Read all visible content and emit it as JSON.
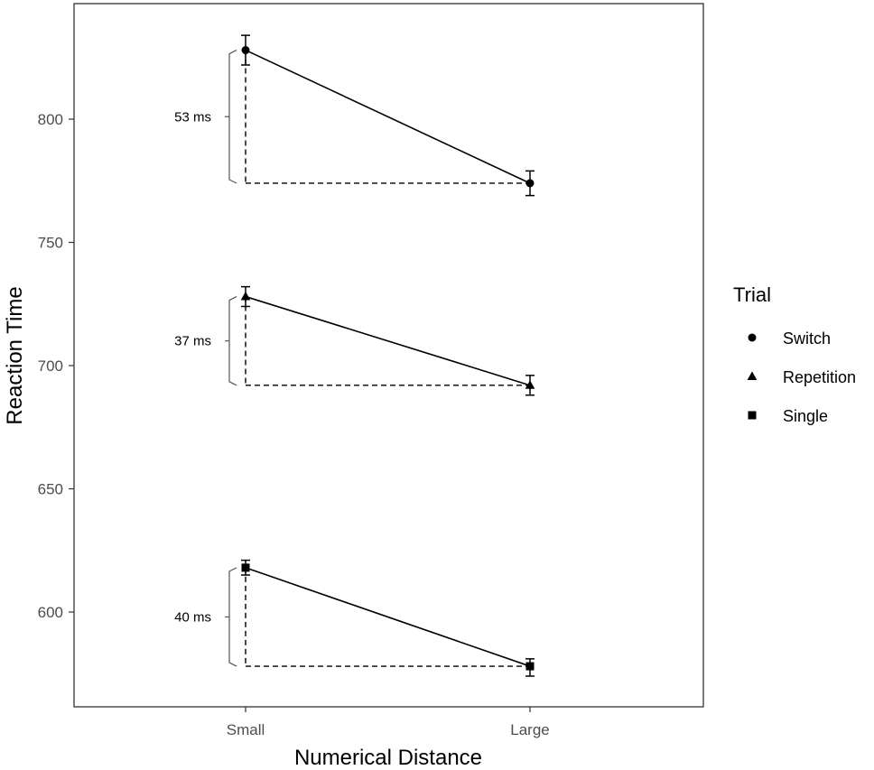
{
  "chart_data": {
    "type": "line",
    "categories": [
      "Small",
      "Large"
    ],
    "xlabel": "Numerical Distance",
    "ylabel": "Reaction Time",
    "ylim": [
      570,
      835
    ],
    "yticks": [
      600,
      650,
      700,
      750,
      800
    ],
    "grid": false,
    "legend": {
      "title": "Trial",
      "position": "right"
    },
    "series": [
      {
        "name": "Switch",
        "marker": "circle",
        "values": [
          828,
          774
        ],
        "err_low": [
          822,
          769
        ],
        "err_high": [
          834,
          779
        ]
      },
      {
        "name": "Repetition",
        "marker": "triangle",
        "values": [
          728,
          692
        ],
        "err_low": [
          724,
          688
        ],
        "err_high": [
          732,
          696
        ]
      },
      {
        "name": "Single",
        "marker": "square",
        "values": [
          618,
          578
        ],
        "err_low": [
          615,
          574
        ],
        "err_high": [
          621,
          581
        ]
      }
    ],
    "annotations": [
      {
        "series": "Switch",
        "label": "53 ms"
      },
      {
        "series": "Repetition",
        "label": "37 ms"
      },
      {
        "series": "Single",
        "label": "40 ms"
      }
    ],
    "colors": {
      "line": "#000000",
      "tick": "#4d4d4d",
      "panel_border": "#333333"
    }
  }
}
